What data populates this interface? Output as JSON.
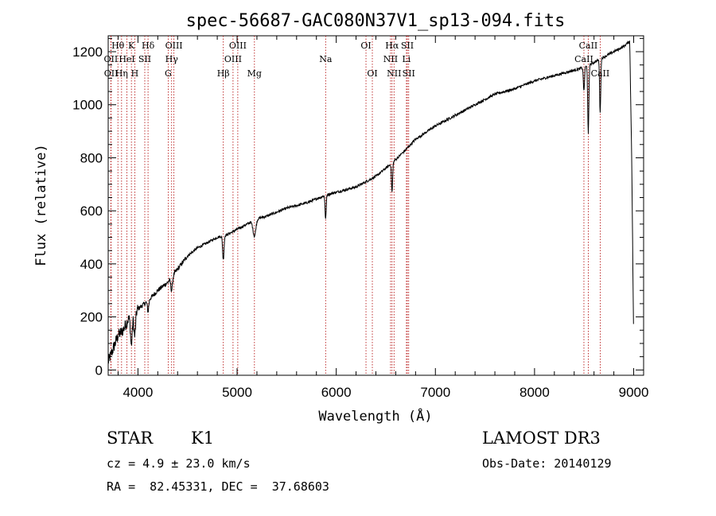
{
  "chart_data": {
    "type": "line",
    "title": "spec-56687-GAC080N37V1_sp13-094.fits",
    "xlabel": "Wavelength (Å)",
    "ylabel": "Flux (relative)",
    "xlim": [
      3700,
      9100
    ],
    "ylim": [
      -20,
      1260
    ],
    "xticks": [
      4000,
      5000,
      6000,
      7000,
      8000,
      9000
    ],
    "yticks": [
      0,
      200,
      400,
      600,
      800,
      1000,
      1200
    ],
    "spectrum_anchors": {
      "x": [
        3700,
        3750,
        3800,
        3850,
        3900,
        3950,
        4000,
        4100,
        4200,
        4300,
        4400,
        4500,
        4600,
        4700,
        4800,
        4900,
        5000,
        5100,
        5200,
        5300,
        5500,
        5700,
        5900,
        6000,
        6200,
        6400,
        6563,
        6700,
        6800,
        7000,
        7200,
        7400,
        7600,
        7800,
        8000,
        8200,
        8400,
        8500,
        8600,
        8700,
        8800,
        8900,
        8960,
        8980,
        9000
      ],
      "y": [
        30,
        80,
        130,
        150,
        190,
        210,
        230,
        260,
        300,
        330,
        380,
        430,
        460,
        480,
        500,
        510,
        530,
        550,
        570,
        580,
        610,
        630,
        660,
        670,
        690,
        730,
        780,
        830,
        870,
        920,
        960,
        1000,
        1040,
        1060,
        1090,
        1110,
        1130,
        1140,
        1160,
        1180,
        1200,
        1220,
        1240,
        800,
        100
      ]
    },
    "absorption_features": [
      {
        "x": 3934,
        "depth": 110,
        "width": 12
      },
      {
        "x": 3968,
        "depth": 90,
        "width": 12
      },
      {
        "x": 4102,
        "depth": 40,
        "width": 10
      },
      {
        "x": 4340,
        "depth": 50,
        "width": 12
      },
      {
        "x": 4861,
        "depth": 90,
        "width": 10
      },
      {
        "x": 5175,
        "depth": 60,
        "width": 20
      },
      {
        "x": 5893,
        "depth": 90,
        "width": 8
      },
      {
        "x": 6563,
        "depth": 110,
        "width": 8
      },
      {
        "x": 8498,
        "depth": 90,
        "width": 8
      },
      {
        "x": 8542,
        "depth": 260,
        "width": 8
      },
      {
        "x": 8662,
        "depth": 200,
        "width": 8
      }
    ],
    "lines_top_row1": [
      {
        "label": "Hθ",
        "x": 3798
      },
      {
        "label": "K",
        "x": 3934
      },
      {
        "label": "Hδ",
        "x": 4102
      },
      {
        "label": "OIII",
        "x": 4363
      },
      {
        "label": "OIII",
        "x": 5007
      },
      {
        "label": "OI",
        "x": 6300
      },
      {
        "label": "Hα",
        "x": 6563
      },
      {
        "label": "SII",
        "x": 6717
      },
      {
        "label": "CaII",
        "x": 8542
      }
    ],
    "lines_top_row2": [
      {
        "label": "OII",
        "x": 3727
      },
      {
        "label": "HeI",
        "x": 3889
      },
      {
        "label": "SII",
        "x": 4069
      },
      {
        "label": "Hγ",
        "x": 4340
      },
      {
        "label": "OIII",
        "x": 4959
      },
      {
        "label": "Na",
        "x": 5893
      },
      {
        "label": "NII",
        "x": 6548
      },
      {
        "label": "Li",
        "x": 6708
      },
      {
        "label": "CaII",
        "x": 8498
      }
    ],
    "lines_top_row3": [
      {
        "label": "OII",
        "x": 3729
      },
      {
        "label": "Hη",
        "x": 3835
      },
      {
        "label": "H",
        "x": 3968
      },
      {
        "label": "G",
        "x": 4305
      },
      {
        "label": "Hβ",
        "x": 4861
      },
      {
        "label": "Mg",
        "x": 5175
      },
      {
        "label": "OI",
        "x": 6364
      },
      {
        "label": "NII",
        "x": 6583
      },
      {
        "label": "SII",
        "x": 6731
      },
      {
        "label": "CaII",
        "x": 8662
      }
    ]
  },
  "info": {
    "object_class": "STAR",
    "subclass": "K1",
    "survey": "LAMOST DR3",
    "cz": "cz = 4.9 ± 23.0 km/s",
    "obs_date": "Obs-Date: 20140129",
    "coords": "RA =  82.45331, DEC =  37.68603"
  }
}
